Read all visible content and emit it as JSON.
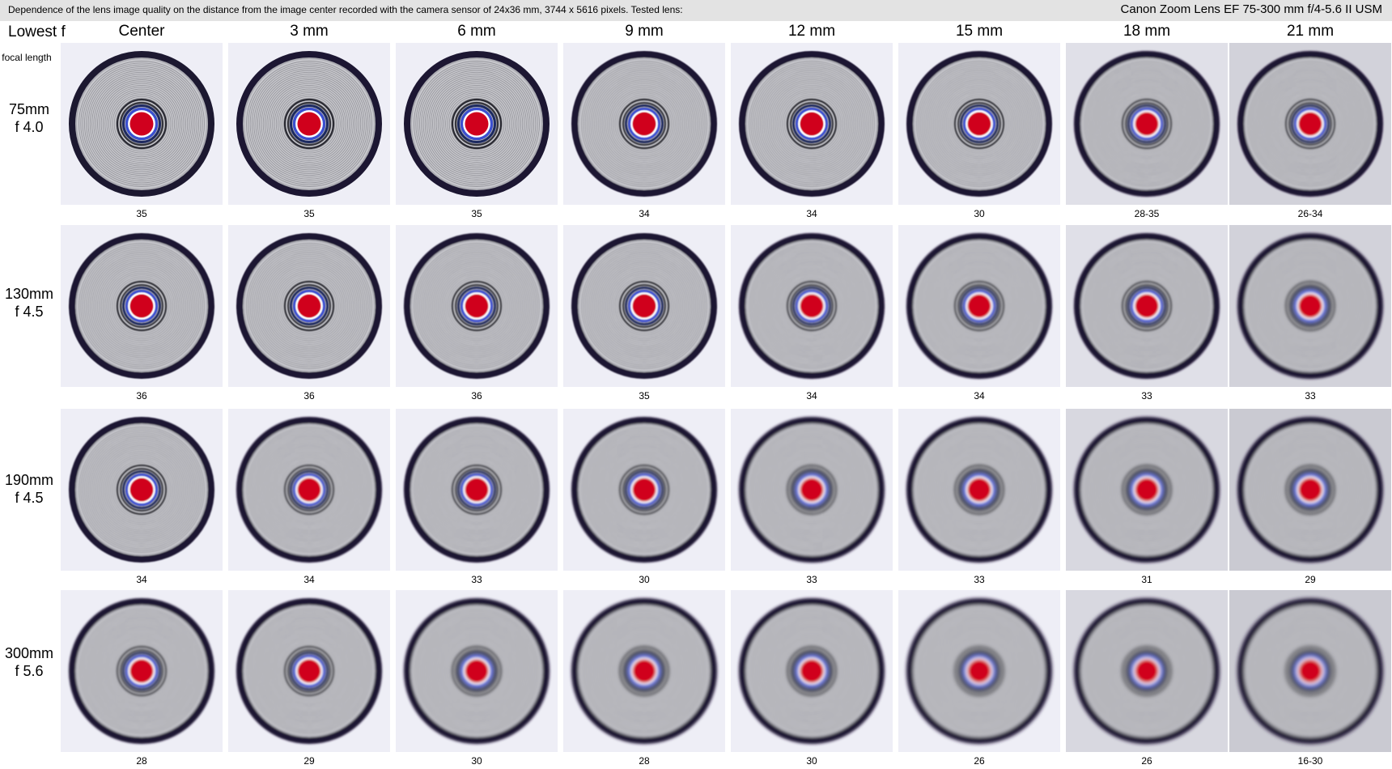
{
  "header": {
    "description": "Dependence of the lens image quality on the distance from the image center recorded with the camera sensor of 24x36 mm, 3744 x 5616 pixels.  Tested lens:",
    "lens": "Canon Zoom Lens EF 75-300 mm f/4-5.6 II USM"
  },
  "corner": {
    "title": "Lowest f",
    "subtitle": "focal length"
  },
  "columns": [
    "Center",
    "3 mm",
    "6 mm",
    "9 mm",
    "12 mm",
    "15 mm",
    "18 mm",
    "21 mm"
  ],
  "rows": [
    {
      "focal": "75mm",
      "aperture": "f 4.0",
      "values": [
        "35",
        "35",
        "35",
        "34",
        "34",
        "30",
        "28-35",
        "26-34"
      ]
    },
    {
      "focal": "130mm",
      "aperture": "f 4.5",
      "values": [
        "36",
        "36",
        "36",
        "35",
        "34",
        "34",
        "33",
        "33"
      ]
    },
    {
      "focal": "190mm",
      "aperture": "f 4.5",
      "values": [
        "34",
        "34",
        "33",
        "30",
        "33",
        "33",
        "31",
        "29"
      ]
    },
    {
      "focal": "300mm",
      "aperture": "f 5.6",
      "values": [
        "28",
        "29",
        "30",
        "28",
        "30",
        "26",
        "26",
        "16-30"
      ]
    }
  ],
  "colors": {
    "header_bg": "#e3e3e3",
    "target_red": "#d0001e",
    "ring_blue": "#3a4fd0",
    "outer_ring_dark": "#1c1830",
    "fringe_purple": "#7a2a9a",
    "fringe_green": "#2f9a6a"
  }
}
